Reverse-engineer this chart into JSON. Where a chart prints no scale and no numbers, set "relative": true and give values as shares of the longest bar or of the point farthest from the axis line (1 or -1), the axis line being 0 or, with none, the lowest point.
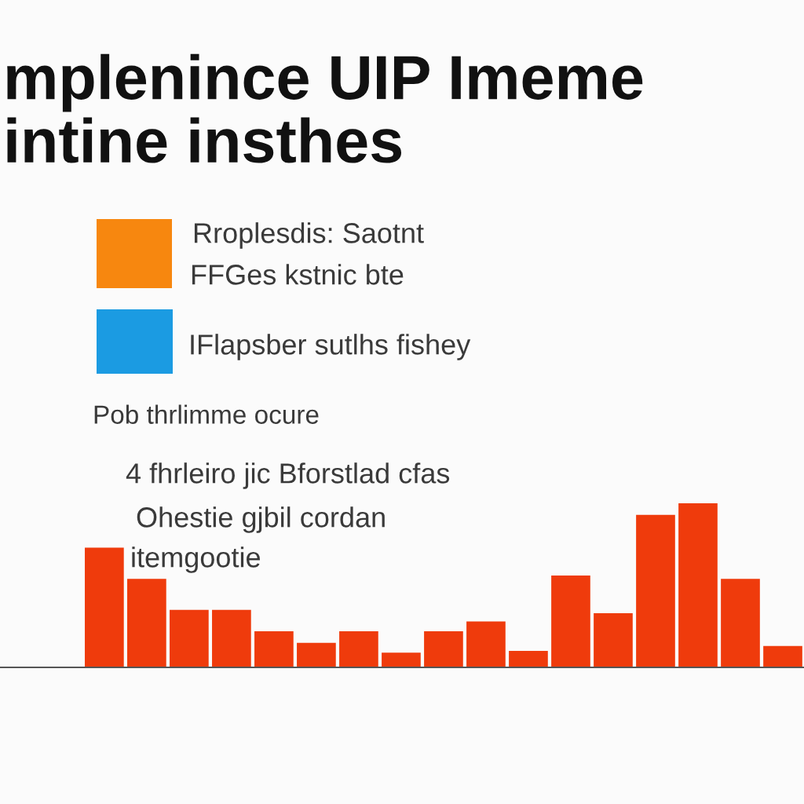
{
  "chart_data": {
    "type": "bar",
    "title": "mplenince UIP Imeme\nintine insthes",
    "annotations": [
      "Rroplesdis: Saotnt",
      "FFGes kstnic bte",
      "IFlapsber sutlhs fishey",
      "Pob thrlimme ocure",
      "4 fhrleiro jic Bforstlad cfas",
      "Ohestie gjbil cordan",
      "itemgootie"
    ],
    "categories": [
      null,
      null,
      null,
      null,
      null,
      null,
      null,
      null,
      null,
      null,
      null,
      null,
      null,
      null,
      null,
      null,
      null
    ],
    "values": [
      0.73,
      0.54,
      0.35,
      0.35,
      0.22,
      0.15,
      0.22,
      0.09,
      0.22,
      0.28,
      0.1,
      0.56,
      0.33,
      0.93,
      1,
      0.54,
      0.13
    ],
    "color": "#ef3b0c",
    "relative": true
  }
}
